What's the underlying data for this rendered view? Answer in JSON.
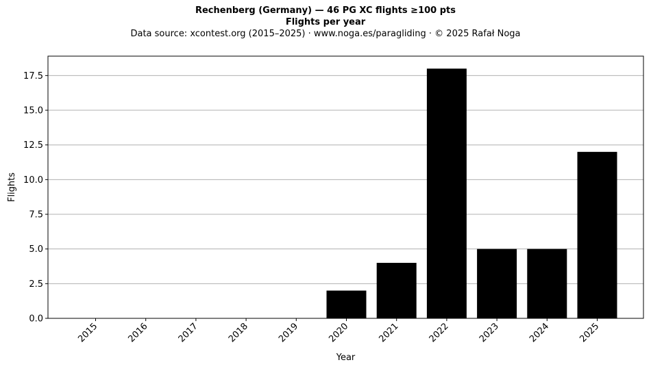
{
  "chart_data": {
    "type": "bar",
    "title": "Rechenberg (Germany)  —  46 PG XC flights ≥100 pts",
    "subtitle": "Flights per year",
    "source_note": "Data source: xcontest.org (2015–2025)  ·  www.noga.es/paragliding  ·  © 2025 Rafał Noga",
    "xlabel": "Year",
    "ylabel": "Flights",
    "categories": [
      "2015",
      "2016",
      "2017",
      "2018",
      "2019",
      "2020",
      "2021",
      "2022",
      "2023",
      "2024",
      "2025"
    ],
    "values": [
      0,
      0,
      0,
      0,
      0,
      2,
      4,
      18,
      5,
      5,
      12
    ],
    "ylim": [
      0,
      18.9
    ],
    "yticks": [
      "0.0",
      "2.5",
      "5.0",
      "7.5",
      "10.0",
      "12.5",
      "15.0",
      "17.5"
    ],
    "grid": "horizontal",
    "bar_color": "#000000",
    "grid_color": "#b0b0b0",
    "legend": "none"
  }
}
